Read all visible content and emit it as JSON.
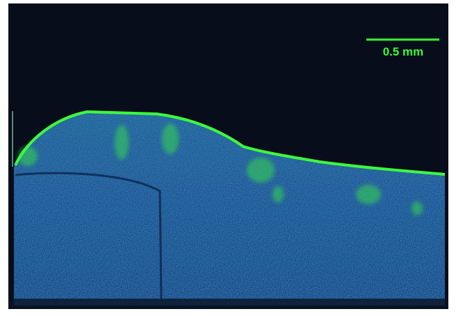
{
  "scale_bar": {
    "label": "0.5 mm"
  }
}
